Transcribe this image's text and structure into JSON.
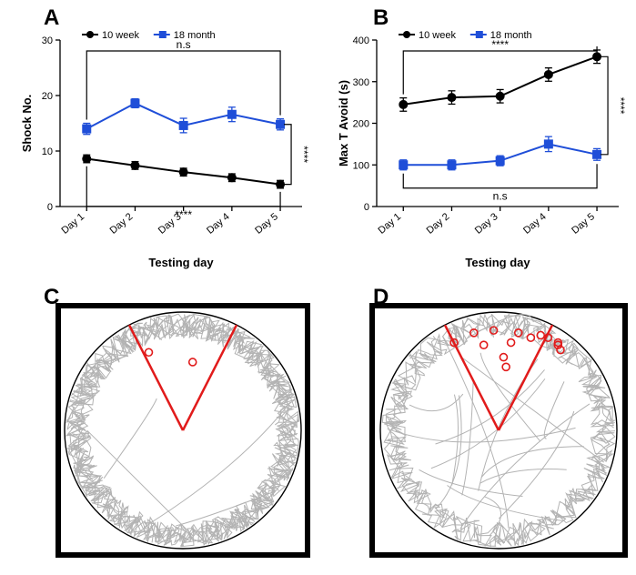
{
  "labels": {
    "A": "A",
    "B": "B",
    "C": "C",
    "D": "D",
    "x_axis": "Testing day"
  },
  "panelA": {
    "type": "line",
    "title": "",
    "ylabel": "Shock No.",
    "xlabel": "Testing day",
    "x_categories": [
      "Day 1",
      "Day 2",
      "Day 3",
      "Day 4",
      "Day 5"
    ],
    "ylim": [
      0,
      30
    ],
    "yticks": [
      0,
      10,
      20,
      30
    ],
    "series": [
      {
        "name": "10 week",
        "color": "#000000",
        "marker": "circle",
        "y": [
          8.6,
          7.4,
          6.2,
          5.2,
          4.0
        ],
        "err": [
          0.7,
          0.7,
          0.7,
          0.7,
          0.7
        ]
      },
      {
        "name": "18 month",
        "color": "#1f4ed8",
        "marker": "square",
        "y": [
          14.0,
          18.6,
          14.6,
          16.6,
          14.8
        ],
        "err": [
          1.0,
          0.8,
          1.3,
          1.3,
          1.0
        ]
      }
    ],
    "annotations": {
      "top_bracket_label": "n.s",
      "bottom_bracket_label": "****",
      "right_bracket_label": "****"
    },
    "legend_pos": "top-left",
    "line_width": 2,
    "marker_size": 5,
    "label_fontsize": 13,
    "tick_fontsize": 11,
    "panel_label_fontsize": 24,
    "xtick_rotation": -40
  },
  "panelB": {
    "type": "line",
    "title": "",
    "ylabel": "Max T Avoid (s)",
    "xlabel": "Testing day",
    "x_categories": [
      "Day 1",
      "Day 2",
      "Day 3",
      "Day 4",
      "Day 5"
    ],
    "ylim": [
      0,
      400
    ],
    "yticks": [
      0,
      100,
      200,
      300,
      400
    ],
    "series": [
      {
        "name": "10 week",
        "color": "#000000",
        "marker": "circle",
        "y": [
          245,
          262,
          265,
          317,
          360
        ],
        "err": [
          16,
          16,
          16,
          16,
          16
        ]
      },
      {
        "name": "18 month",
        "color": "#1f4ed8",
        "marker": "square",
        "y": [
          100,
          100,
          110,
          150,
          125
        ],
        "err": [
          12,
          12,
          12,
          18,
          14
        ]
      }
    ],
    "annotations": {
      "top_bracket_label": "****",
      "bottom_bracket_label": "n.s",
      "right_bracket_label": "****"
    },
    "legend_pos": "top-left",
    "line_width": 2,
    "marker_size": 5,
    "label_fontsize": 13,
    "tick_fontsize": 11,
    "panel_label_fontsize": 24,
    "xtick_rotation": -40
  },
  "panelC": {
    "type": "track-plot",
    "arena_border_width": 6,
    "circle_stroke": "#000000",
    "sector_color": "#e11b1b",
    "sector_width": 2.5,
    "sector_angles_deg": [
      63,
      117
    ],
    "track_color": "#b3b3b3",
    "track_width": 1,
    "shock_point_color": "#e11b1b",
    "shock_point_radius": 4,
    "shock_points": [
      [
        0.36,
        0.18
      ],
      [
        0.54,
        0.22
      ]
    ],
    "track_density_profile": "perimeter-heavy"
  },
  "panelD": {
    "type": "track-plot",
    "arena_border_width": 6,
    "circle_stroke": "#000000",
    "sector_color": "#e11b1b",
    "sector_width": 2.5,
    "sector_angles_deg": [
      63,
      117
    ],
    "track_color": "#b3b3b3",
    "track_width": 1,
    "shock_point_color": "#e11b1b",
    "shock_point_radius": 4,
    "shock_points": [
      [
        0.32,
        0.14
      ],
      [
        0.4,
        0.1
      ],
      [
        0.44,
        0.15
      ],
      [
        0.48,
        0.09
      ],
      [
        0.55,
        0.14
      ],
      [
        0.58,
        0.1
      ],
      [
        0.63,
        0.12
      ],
      [
        0.67,
        0.11
      ],
      [
        0.7,
        0.12
      ],
      [
        0.74,
        0.14
      ],
      [
        0.74,
        0.15
      ],
      [
        0.75,
        0.17
      ],
      [
        0.52,
        0.2
      ],
      [
        0.53,
        0.24
      ]
    ],
    "track_density_profile": "perimeter+crisscross"
  },
  "colors": {
    "background": "#ffffff",
    "axis": "#000000",
    "text": "#000000"
  }
}
